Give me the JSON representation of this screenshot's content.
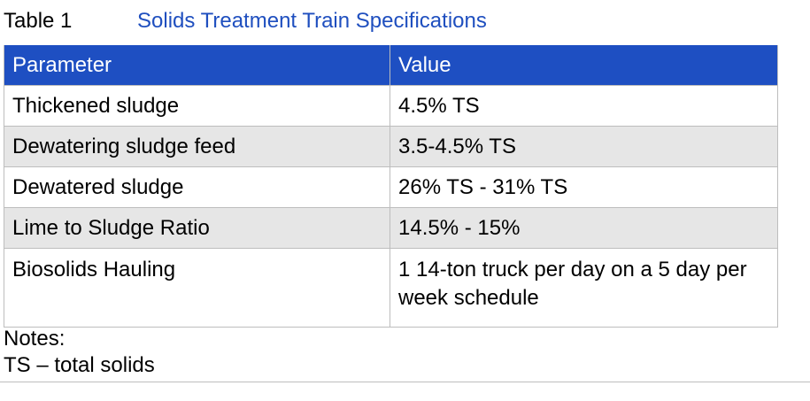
{
  "caption": {
    "label": "Table 1",
    "title": "Solids Treatment Train Specifications"
  },
  "colors": {
    "header_background": "#1e4fc2",
    "title_text": "#1f4fbf",
    "shaded_row": "#e6e6e6"
  },
  "table": {
    "headers": [
      "Parameter",
      "Value"
    ],
    "rows": [
      {
        "parameter": "Thickened sludge",
        "value": "4.5% TS"
      },
      {
        "parameter": "Dewatering sludge feed",
        "value": "3.5-4.5% TS"
      },
      {
        "parameter": "Dewatered sludge",
        "value": "26% TS - 31% TS"
      },
      {
        "parameter": "Lime to Sludge Ratio",
        "value": "14.5% - 15%"
      },
      {
        "parameter": "Biosolids Hauling",
        "value": "1 14-ton truck per day on a 5 day per week schedule"
      }
    ]
  },
  "notes": {
    "heading": "Notes:",
    "items": [
      "TS – total solids"
    ]
  }
}
